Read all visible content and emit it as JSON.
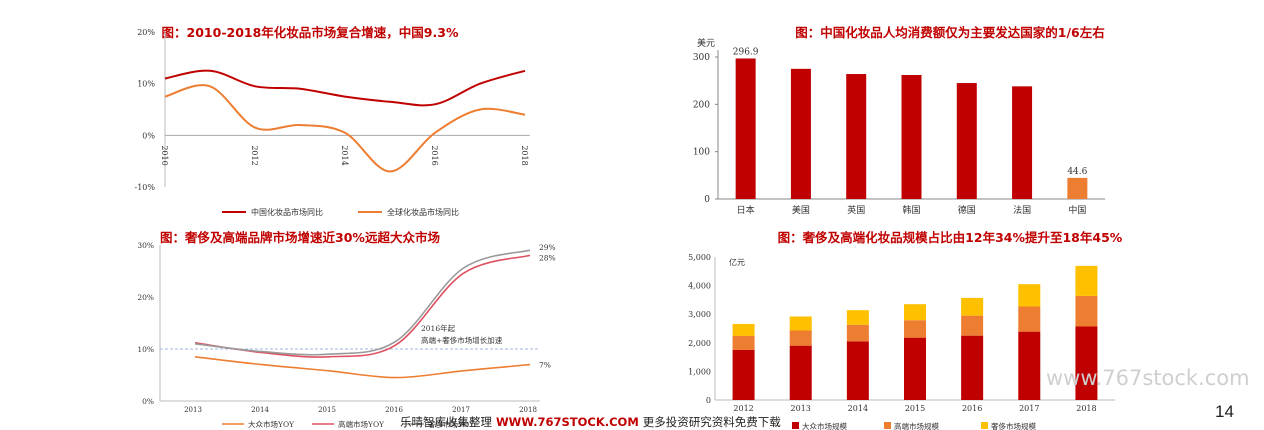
{
  "chart_data": [
    {
      "type": "line",
      "title": "图：2010-2018年化妆品市场复合增速，中国9.3%",
      "x": [
        2010,
        2011,
        2012,
        2013,
        2014,
        2015,
        2016,
        2017,
        2018
      ],
      "x_tick_labels": [
        "2010",
        "2012",
        "2014",
        "2016",
        "2018"
      ],
      "x_tick_values": [
        2010,
        2012,
        2014,
        2016,
        2018
      ],
      "y_ticks": [
        "20%",
        "10%",
        "0%",
        "-10%"
      ],
      "y_tick_values": [
        20,
        10,
        0,
        -10
      ],
      "ylim": [
        -10,
        20
      ],
      "series": [
        {
          "name": "中国化妆品市场同比",
          "color": "#c00000",
          "values": [
            11,
            12.5,
            9.5,
            9,
            7.5,
            6.5,
            6,
            10,
            12.5
          ]
        },
        {
          "name": "全球化妆品市场同比",
          "color": "#ed7d31",
          "values": [
            7.5,
            9.5,
            1.5,
            2,
            0.5,
            -7,
            0.5,
            5,
            4
          ]
        }
      ],
      "legend": "bottom"
    },
    {
      "type": "bar",
      "title": "图：中国化妆品人均消费额仅为主要发达国家的1/6左右",
      "ylabel": "美元",
      "categories": [
        "日本",
        "美国",
        "英国",
        "韩国",
        "德国",
        "法国",
        "中国"
      ],
      "values": [
        296.9,
        275,
        264,
        262,
        245,
        238,
        44.6
      ],
      "colors": [
        "#c00000",
        "#c00000",
        "#c00000",
        "#c00000",
        "#c00000",
        "#c00000",
        "#ed7d31"
      ],
      "data_labels": [
        "296.9",
        "",
        "",
        "",
        "",
        "",
        "44.6"
      ],
      "y_ticks": [
        "300",
        "200",
        "100",
        "0"
      ],
      "y_tick_values": [
        300,
        200,
        100,
        0
      ],
      "ylim": [
        0,
        310
      ]
    },
    {
      "type": "line",
      "title": "图：奢侈及高端品牌市场增速近30%远超大众市场",
      "x": [
        2013,
        2014,
        2015,
        2016,
        2017,
        2018
      ],
      "x_tick_labels": [
        "2013",
        "2014",
        "2015",
        "2016",
        "2017",
        "2018"
      ],
      "y_ticks": [
        "30%",
        "20%",
        "10%",
        "0%"
      ],
      "y_tick_values": [
        30,
        20,
        10,
        0
      ],
      "ylim": [
        0,
        30
      ],
      "series": [
        {
          "name": "大众市场YOY",
          "color": "#ed7d31",
          "values": [
            8.5,
            7,
            5.8,
            4.5,
            5.8,
            7
          ]
        },
        {
          "name": "高端市场YOY",
          "color": "#e05060",
          "values": [
            11.2,
            9.3,
            8.5,
            10.8,
            24.5,
            28
          ]
        },
        {
          "name": "奢侈市场YOY",
          "color": "#999999",
          "values": [
            11,
            9.5,
            9,
            11.5,
            25.5,
            29
          ]
        }
      ],
      "reference_line": 10,
      "end_labels": [
        "7%",
        "28%",
        "29%"
      ],
      "annotation": [
        "2016年起",
        "高端+奢侈市场增长加速"
      ],
      "legend": "bottom"
    },
    {
      "type": "bar",
      "stacked": true,
      "title": "图：奢侈及高端化妆品规模占比由12年34%提升至18年45%",
      "ylabel": "亿元",
      "categories": [
        "2012",
        "2013",
        "2014",
        "2015",
        "2016",
        "2017",
        "2018"
      ],
      "y_ticks": [
        "5,000",
        "4,000",
        "3,000",
        "2,000",
        "1,000",
        "0"
      ],
      "y_tick_values": [
        5000,
        4000,
        3000,
        2000,
        1000,
        0
      ],
      "ylim": [
        0,
        5000
      ],
      "series": [
        {
          "name": "大众市场规模",
          "color": "#c00000",
          "values": [
            1750,
            1900,
            2050,
            2180,
            2250,
            2390,
            2570
          ]
        },
        {
          "name": "高端市场规模",
          "color": "#ed7d31",
          "values": [
            490,
            530,
            580,
            610,
            700,
            880,
            1070
          ]
        },
        {
          "name": "奢侈市场规模",
          "color": "#ffc000",
          "values": [
            420,
            490,
            510,
            560,
            620,
            780,
            1050
          ]
        }
      ],
      "legend": "bottom"
    }
  ],
  "footer": {
    "left": "乐晴智库收集整理",
    "url": "WWW.767STOCK.COM",
    "right": "更多投资研究资料免费下载"
  },
  "watermark": "www.767stock.com",
  "page_number": "14"
}
